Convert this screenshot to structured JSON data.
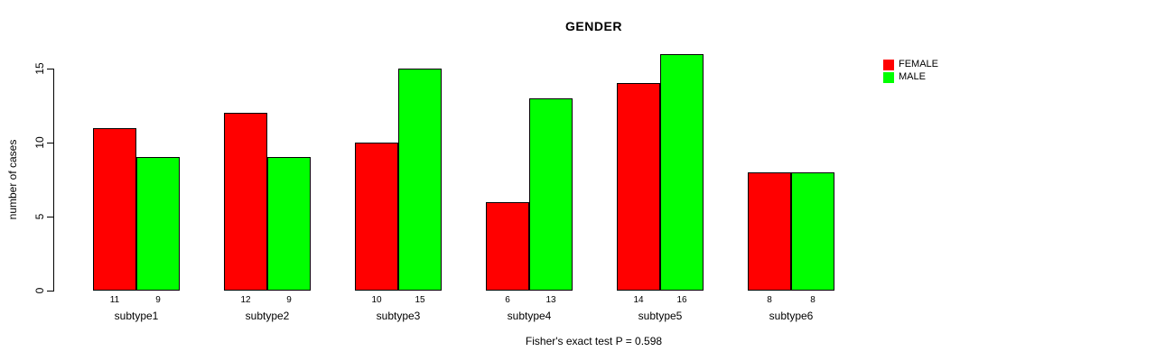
{
  "chart_data": {
    "type": "bar",
    "title": "GENDER",
    "ylabel": "number of cases",
    "xlabel": "",
    "caption": "Fisher's exact test P = 0.598",
    "categories": [
      "subtype1",
      "subtype2",
      "subtype3",
      "subtype4",
      "subtype5",
      "subtype6"
    ],
    "series": [
      {
        "name": "FEMALE",
        "color": "#FF0000",
        "values": [
          11,
          12,
          10,
          6,
          14,
          8
        ]
      },
      {
        "name": "MALE",
        "color": "#00FF00",
        "values": [
          9,
          9,
          15,
          13,
          16,
          8
        ]
      }
    ],
    "yticks": [
      0,
      5,
      10,
      15
    ],
    "ylim": [
      0,
      16
    ],
    "grid": false,
    "legend_position": "top-right",
    "bar_value_labels_shown": true,
    "background_color": "#FFFFFF",
    "axis_color": "#000000"
  }
}
